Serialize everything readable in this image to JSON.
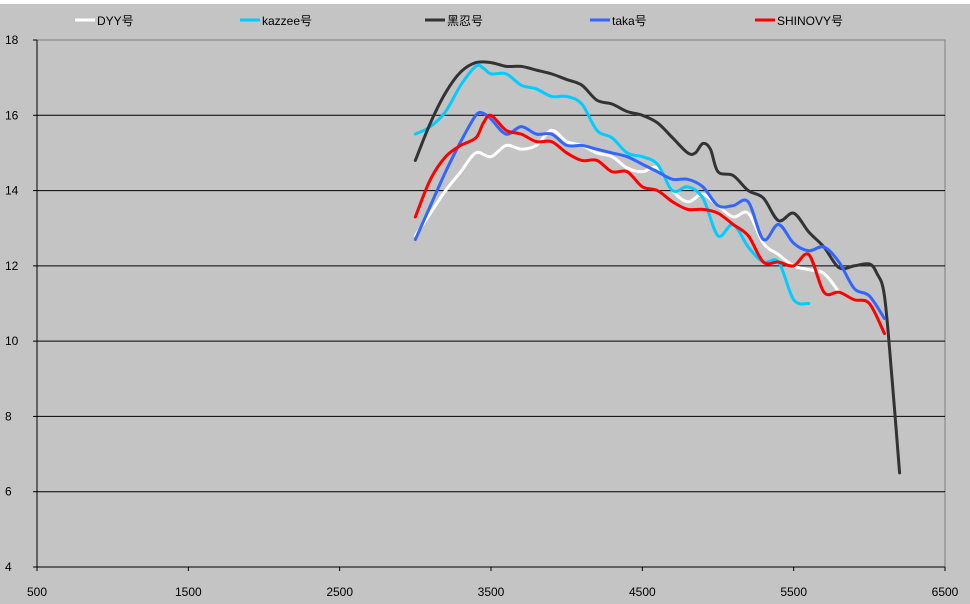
{
  "chart_data": {
    "type": "line",
    "title": "",
    "xlabel": "",
    "ylabel": "",
    "xlim": [
      500,
      6500
    ],
    "ylim": [
      4,
      18
    ],
    "xticks": [
      500,
      1500,
      2500,
      3500,
      4500,
      5500,
      6500
    ],
    "yticks": [
      4,
      6,
      8,
      10,
      12,
      14,
      16,
      18
    ],
    "grid": "horizontal",
    "legend_position": "top",
    "series": [
      {
        "name": "DYY号",
        "color": "#ffffff",
        "x": [
          3000,
          3100,
          3200,
          3300,
          3400,
          3500,
          3600,
          3700,
          3800,
          3900,
          4000,
          4100,
          4200,
          4300,
          4400,
          4500,
          4600,
          4700,
          4800,
          4900,
          5000,
          5100,
          5200,
          5300,
          5400,
          5500,
          5600,
          5700,
          5800
        ],
        "y": [
          12.8,
          13.4,
          14.0,
          14.5,
          15.0,
          14.9,
          15.2,
          15.1,
          15.2,
          15.6,
          15.3,
          15.2,
          15.0,
          14.9,
          14.6,
          14.5,
          14.6,
          14.0,
          13.7,
          13.9,
          13.6,
          13.3,
          13.4,
          12.6,
          12.3,
          12.0,
          11.9,
          11.8,
          11.3
        ]
      },
      {
        "name": "kazzee号",
        "color": "#00ccff",
        "x": [
          3000,
          3100,
          3200,
          3300,
          3400,
          3450,
          3500,
          3600,
          3700,
          3800,
          3900,
          4000,
          4100,
          4200,
          4300,
          4400,
          4500,
          4600,
          4700,
          4800,
          4900,
          5000,
          5100,
          5200,
          5300,
          5400,
          5500,
          5600
        ],
        "y": [
          15.5,
          15.7,
          16.1,
          16.8,
          17.3,
          17.25,
          17.1,
          17.1,
          16.8,
          16.7,
          16.5,
          16.5,
          16.3,
          15.6,
          15.4,
          15.0,
          14.9,
          14.7,
          14.0,
          14.1,
          13.8,
          12.8,
          13.1,
          12.5,
          12.1,
          12.1,
          11.1,
          11.0
        ]
      },
      {
        "name": "黑忍号",
        "color": "#333333",
        "x": [
          3000,
          3100,
          3200,
          3300,
          3400,
          3500,
          3600,
          3700,
          3800,
          3900,
          4000,
          4100,
          4200,
          4300,
          4400,
          4500,
          4600,
          4700,
          4800,
          4850,
          4900,
          4950,
          5000,
          5100,
          5200,
          5300,
          5400,
          5500,
          5600,
          5700,
          5800,
          5900,
          6000,
          6050,
          6100,
          6150,
          6200
        ],
        "y": [
          14.8,
          15.8,
          16.6,
          17.15,
          17.4,
          17.4,
          17.3,
          17.3,
          17.2,
          17.1,
          16.95,
          16.8,
          16.4,
          16.3,
          16.1,
          16.0,
          15.8,
          15.4,
          15.0,
          15.0,
          15.25,
          15.1,
          14.5,
          14.4,
          14.0,
          13.8,
          13.2,
          13.4,
          12.9,
          12.5,
          11.95,
          12.0,
          12.05,
          11.8,
          11.2,
          9.0,
          6.5
        ]
      },
      {
        "name": "taka号",
        "color": "#3366ff",
        "x": [
          3000,
          3100,
          3200,
          3300,
          3400,
          3450,
          3500,
          3600,
          3700,
          3800,
          3900,
          4000,
          4100,
          4200,
          4300,
          4400,
          4500,
          4600,
          4700,
          4800,
          4900,
          5000,
          5100,
          5200,
          5300,
          5400,
          5500,
          5600,
          5700,
          5800,
          5900,
          6000,
          6100
        ],
        "y": [
          12.7,
          13.6,
          14.5,
          15.3,
          16.0,
          16.05,
          15.9,
          15.5,
          15.7,
          15.5,
          15.5,
          15.2,
          15.2,
          15.1,
          15.0,
          14.9,
          14.7,
          14.5,
          14.3,
          14.3,
          14.1,
          13.6,
          13.6,
          13.7,
          12.7,
          13.1,
          12.6,
          12.4,
          12.5,
          12.1,
          11.4,
          11.2,
          10.6
        ]
      },
      {
        "name": "SHINOVY号",
        "color": "#ff0000",
        "x": [
          3000,
          3100,
          3200,
          3300,
          3400,
          3450,
          3500,
          3600,
          3700,
          3800,
          3900,
          4000,
          4100,
          4200,
          4300,
          4400,
          4500,
          4600,
          4700,
          4800,
          4900,
          5000,
          5100,
          5200,
          5300,
          5400,
          5500,
          5600,
          5700,
          5800,
          5900,
          6000,
          6100
        ],
        "y": [
          13.3,
          14.3,
          14.9,
          15.2,
          15.4,
          15.8,
          16.0,
          15.6,
          15.5,
          15.3,
          15.3,
          15.0,
          14.8,
          14.8,
          14.5,
          14.5,
          14.1,
          14.0,
          13.7,
          13.5,
          13.5,
          13.4,
          13.1,
          12.8,
          12.1,
          12.1,
          12.0,
          12.3,
          11.3,
          11.3,
          11.1,
          11.0,
          10.2
        ]
      }
    ]
  }
}
